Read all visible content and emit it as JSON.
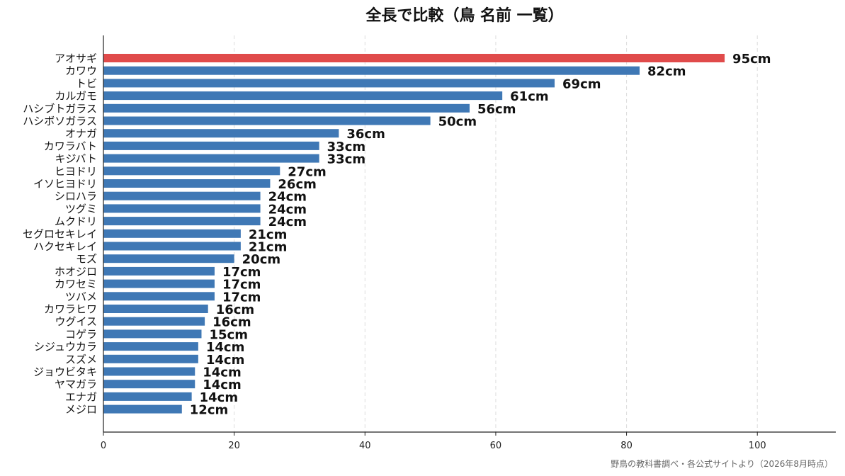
{
  "chart_data": {
    "type": "bar",
    "orientation": "horizontal",
    "title": "全長で比較（鳥 名前 一覧）",
    "xlabel": "",
    "ylabel": "",
    "xlim": [
      0,
      112
    ],
    "xticks": [
      0,
      20,
      40,
      60,
      80,
      100
    ],
    "grid": true,
    "legend": "none",
    "unit": "cm",
    "categories": [
      "アオサギ",
      "カワウ",
      "トビ",
      "カルガモ",
      "ハシブトガラス",
      "ハシボソガラス",
      "オナガ",
      "カワラバト",
      "キジバト",
      "ヒヨドリ",
      "イソヒヨドリ",
      "シロハラ",
      "ツグミ",
      "ムクドリ",
      "セグロセキレイ",
      "ハクセキレイ",
      "モズ",
      "ホオジロ",
      "カワセミ",
      "ツバメ",
      "カワラヒワ",
      "ウグイス",
      "コゲラ",
      "シジュウカラ",
      "スズメ",
      "ジョウビタキ",
      "ヤマガラ",
      "エナガ",
      "メジロ"
    ],
    "values": [
      95,
      82,
      69,
      61,
      56,
      50,
      36,
      33,
      33,
      27,
      25.5,
      24,
      24,
      24,
      21,
      21,
      20,
      17,
      17,
      17,
      16,
      15.5,
      15,
      14.5,
      14.5,
      14,
      14,
      13.5,
      12
    ],
    "value_labels": [
      "95cm",
      "82cm",
      "69cm",
      "61cm",
      "56cm",
      "50cm",
      "36cm",
      "33cm",
      "33cm",
      "27cm",
      "26cm",
      "24cm",
      "24cm",
      "24cm",
      "21cm",
      "21cm",
      "20cm",
      "17cm",
      "17cm",
      "17cm",
      "16cm",
      "16cm",
      "15cm",
      "14cm",
      "14cm",
      "14cm",
      "14cm",
      "14cm",
      "12cm"
    ],
    "highlight_index": 0,
    "colors": {
      "bar": "#3F78B5",
      "highlight": "#E04B4B"
    },
    "source_note": "野鳥の教科書調べ・各公式サイトより（2026年8月時点）"
  }
}
